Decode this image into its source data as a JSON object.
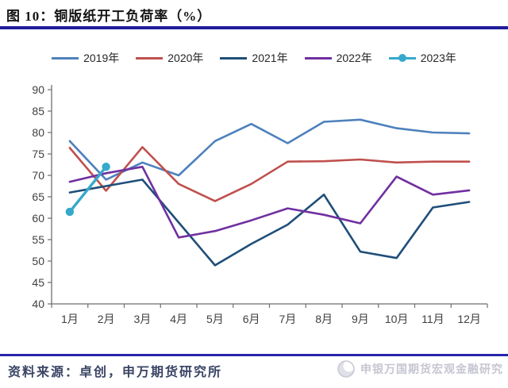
{
  "header": {
    "title": "图 10：铜版纸开工负荷率（%）",
    "rule_color": "#201D9B"
  },
  "chart_data": {
    "type": "line",
    "title": "铜版纸开工负荷率（%）",
    "categories": [
      "1月",
      "2月",
      "3月",
      "4月",
      "5月",
      "6月",
      "7月",
      "8月",
      "9月",
      "10月",
      "11月",
      "12月"
    ],
    "series": [
      {
        "name": "2019年",
        "color": "#4E81BD",
        "marker": false,
        "values": [
          78,
          69,
          73,
          70,
          78,
          82,
          77.5,
          82.5,
          83,
          81,
          80,
          79.8
        ]
      },
      {
        "name": "2020年",
        "color": "#C0504D",
        "marker": false,
        "values": [
          76.4,
          66.4,
          76.6,
          68,
          64,
          68,
          73.2,
          73.3,
          73.7,
          73,
          73.2,
          73.2
        ]
      },
      {
        "name": "2021年",
        "color": "#1F4E79",
        "marker": false,
        "values": [
          66,
          67.5,
          69,
          59,
          49,
          54,
          58.5,
          65.5,
          52.2,
          50.7,
          62.5,
          63.8
        ]
      },
      {
        "name": "2022年",
        "color": "#7030A0",
        "marker": false,
        "values": [
          68.5,
          70.5,
          72,
          55.5,
          57,
          59.5,
          62.3,
          60.8,
          58.8,
          69.7,
          65.5,
          66.5
        ]
      },
      {
        "name": "2023年",
        "color": "#35A9CB",
        "marker": true,
        "values": [
          61.5,
          72,
          null,
          null,
          null,
          null,
          null,
          null,
          null,
          null,
          null,
          null
        ]
      }
    ],
    "ylim": [
      40,
      90
    ],
    "ytick_step": 5,
    "yticks": [
      40,
      45,
      50,
      55,
      60,
      65,
      70,
      75,
      80,
      85,
      90
    ],
    "xlabel": "",
    "ylabel": "",
    "grid": false,
    "legend_position": "top",
    "axis_color": "#6F6F6F",
    "label_color": "#3F3F3F"
  },
  "footer": {
    "source": "资料来源：卓创，申万期货研究所",
    "watermark": "申银万国期货宏观金融研究",
    "rule_color": "#2824AC"
  }
}
